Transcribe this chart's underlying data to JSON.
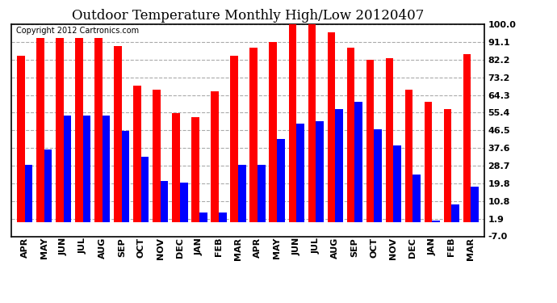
{
  "title": "Outdoor Temperature Monthly High/Low 20120407",
  "copyright_text": "Copyright 2012 Cartronics.com",
  "months": [
    "APR",
    "MAY",
    "JUN",
    "JUL",
    "AUG",
    "SEP",
    "OCT",
    "NOV",
    "DEC",
    "JAN",
    "FEB",
    "MAR",
    "APR",
    "MAY",
    "JUN",
    "JUL",
    "AUG",
    "SEP",
    "OCT",
    "NOV",
    "DEC",
    "JAN",
    "FEB",
    "MAR"
  ],
  "highs": [
    84,
    93,
    93,
    93,
    93,
    89,
    69,
    67,
    55,
    53,
    66,
    84,
    88,
    91,
    100,
    101,
    96,
    88,
    82,
    83,
    67,
    61,
    57,
    85
  ],
  "lows": [
    29,
    37,
    54,
    54,
    54,
    46,
    33,
    21,
    20,
    5,
    5,
    29,
    29,
    42,
    50,
    51,
    57,
    61,
    47,
    39,
    24,
    1,
    9,
    18
  ],
  "y_ticks": [
    -7.0,
    1.9,
    10.8,
    19.8,
    28.7,
    37.6,
    46.5,
    55.4,
    64.3,
    73.2,
    82.2,
    91.1,
    100.0
  ],
  "ylim": [
    -7.0,
    100.0
  ],
  "bar_width": 0.4,
  "high_color": "#ff0000",
  "low_color": "#0000ff",
  "bg_color": "#ffffff",
  "grid_color": "#aaaaaa",
  "title_fontsize": 12,
  "tick_fontsize": 8,
  "copyright_fontsize": 7
}
